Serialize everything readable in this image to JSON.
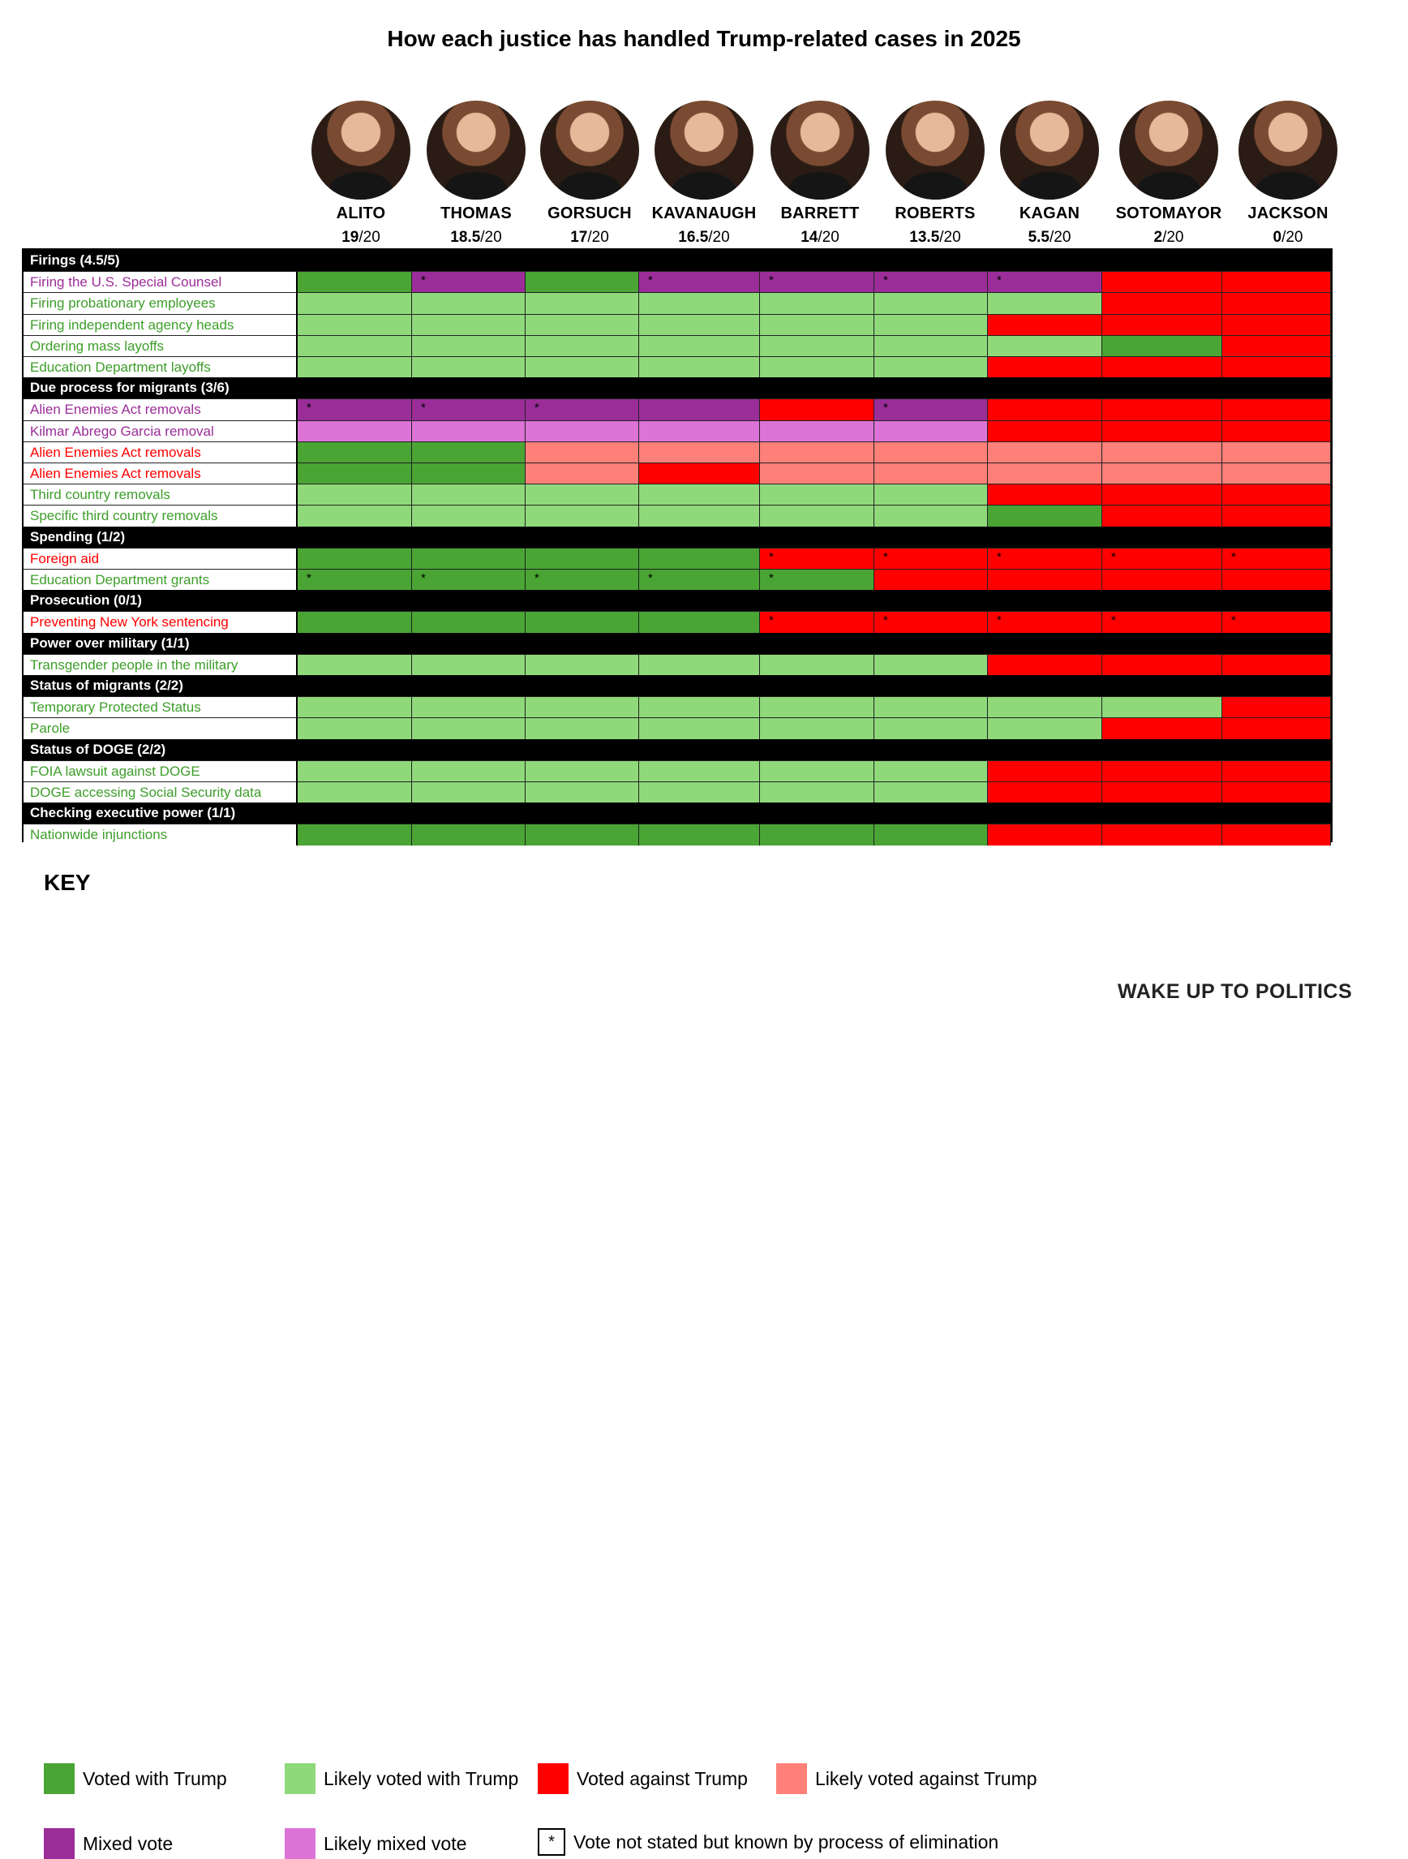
{
  "title": "How each justice has handled Trump-related cases in 2025",
  "colors": {
    "voted_with": "#4aa534",
    "likely_with": "#8fd97a",
    "voted_against": "#ff0000",
    "likely_against": "#ff8079",
    "mixed": "#9b2d99",
    "likely_mixed": "#dc74d8"
  },
  "label_colors": {
    "with": "#3d9e2a",
    "mixed": "#9b2d99",
    "against": "#ff0000"
  },
  "chart_data": {
    "type": "table",
    "title": "How each justice has handled Trump-related cases in 2025",
    "justices": [
      {
        "name": "ALITO",
        "score": "19",
        "of": "/20"
      },
      {
        "name": "THOMAS",
        "score": "18.5",
        "of": "/20"
      },
      {
        "name": "GORSUCH",
        "score": "17",
        "of": "/20"
      },
      {
        "name": "KAVANAUGH",
        "score": "16.5",
        "of": "/20"
      },
      {
        "name": "BARRETT",
        "score": "14",
        "of": "/20"
      },
      {
        "name": "ROBERTS",
        "score": "13.5",
        "of": "/20"
      },
      {
        "name": "KAGAN",
        "score": "5.5",
        "of": "/20"
      },
      {
        "name": "SOTOMAYOR",
        "score": "2",
        "of": "/20"
      },
      {
        "name": "JACKSON",
        "score": "0",
        "of": "/20"
      }
    ],
    "rows": [
      {
        "kind": "header",
        "label": "Firings (4.5/5)"
      },
      {
        "kind": "case",
        "label": "Firing the U.S. Special Counsel",
        "label_type": "mixed",
        "cells": [
          "W",
          "M*",
          "W",
          "M*",
          "M*",
          "M*",
          "M*",
          "A",
          "A"
        ]
      },
      {
        "kind": "case",
        "label": "Firing probationary employees",
        "label_type": "with",
        "cells": [
          "LW",
          "LW",
          "LW",
          "LW",
          "LW",
          "LW",
          "LW",
          "A",
          "A"
        ]
      },
      {
        "kind": "case",
        "label": "Firing independent agency heads",
        "label_type": "with",
        "cells": [
          "LW",
          "LW",
          "LW",
          "LW",
          "LW",
          "LW",
          "A",
          "A",
          "A"
        ]
      },
      {
        "kind": "case",
        "label": "Ordering mass layoffs",
        "label_type": "with",
        "cells": [
          "LW",
          "LW",
          "LW",
          "LW",
          "LW",
          "LW",
          "LW",
          "W",
          "A"
        ]
      },
      {
        "kind": "case",
        "label": "Education Department layoffs",
        "label_type": "with",
        "cells": [
          "LW",
          "LW",
          "LW",
          "LW",
          "LW",
          "LW",
          "A",
          "A",
          "A"
        ]
      },
      {
        "kind": "header",
        "label": "Due process for migrants (3/6)"
      },
      {
        "kind": "case",
        "label": "Alien Enemies Act removals",
        "label_type": "mixed",
        "cells": [
          "M*",
          "M*",
          "M*",
          "M",
          "A",
          "M*",
          "A",
          "A",
          "A"
        ]
      },
      {
        "kind": "case",
        "label": "Kilmar Abrego Garcia removal",
        "label_type": "mixed",
        "cells": [
          "LM",
          "LM",
          "LM",
          "LM",
          "LM",
          "LM",
          "A",
          "A",
          "A"
        ]
      },
      {
        "kind": "case",
        "label": "Alien Enemies Act removals",
        "label_type": "against",
        "cells": [
          "W",
          "W",
          "LA",
          "LA",
          "LA",
          "LA",
          "LA",
          "LA",
          "LA"
        ]
      },
      {
        "kind": "case",
        "label": "Alien Enemies Act removals",
        "label_type": "against",
        "cells": [
          "W",
          "W",
          "LA",
          "A",
          "LA",
          "LA",
          "LA",
          "LA",
          "LA"
        ]
      },
      {
        "kind": "case",
        "label": "Third country removals",
        "label_type": "with",
        "cells": [
          "LW",
          "LW",
          "LW",
          "LW",
          "LW",
          "LW",
          "A",
          "A",
          "A"
        ]
      },
      {
        "kind": "case",
        "label": "Specific third country removals",
        "label_type": "with",
        "cells": [
          "LW",
          "LW",
          "LW",
          "LW",
          "LW",
          "LW",
          "W",
          "A",
          "A"
        ]
      },
      {
        "kind": "header",
        "label": "Spending (1/2)"
      },
      {
        "kind": "case",
        "label": "Foreign aid",
        "label_type": "against",
        "cells": [
          "W",
          "W",
          "W",
          "W",
          "A*",
          "A*",
          "A*",
          "A*",
          "A*"
        ]
      },
      {
        "kind": "case",
        "label": "Education Department grants",
        "label_type": "with",
        "cells": [
          "W*",
          "W*",
          "W*",
          "W*",
          "W*",
          "A",
          "A",
          "A",
          "A"
        ]
      },
      {
        "kind": "header",
        "label": "Prosecution (0/1)"
      },
      {
        "kind": "case",
        "label": "Preventing New York sentencing",
        "label_type": "against",
        "cells": [
          "W",
          "W",
          "W",
          "W",
          "A*",
          "A*",
          "A*",
          "A*",
          "A*"
        ]
      },
      {
        "kind": "header",
        "label": "Power over military (1/1)"
      },
      {
        "kind": "case",
        "label": "Transgender people in the military",
        "label_type": "with",
        "cells": [
          "LW",
          "LW",
          "LW",
          "LW",
          "LW",
          "LW",
          "A",
          "A",
          "A"
        ]
      },
      {
        "kind": "header",
        "label": "Status of migrants (2/2)"
      },
      {
        "kind": "case",
        "label": "Temporary Protected Status",
        "label_type": "with",
        "cells": [
          "LW",
          "LW",
          "LW",
          "LW",
          "LW",
          "LW",
          "LW",
          "LW",
          "A"
        ]
      },
      {
        "kind": "case",
        "label": "Parole",
        "label_type": "with",
        "cells": [
          "LW",
          "LW",
          "LW",
          "LW",
          "LW",
          "LW",
          "LW",
          "A",
          "A"
        ]
      },
      {
        "kind": "header",
        "label": "Status of DOGE (2/2)"
      },
      {
        "kind": "case",
        "label": "FOIA lawsuit against DOGE",
        "label_type": "with",
        "cells": [
          "LW",
          "LW",
          "LW",
          "LW",
          "LW",
          "LW",
          "A",
          "A",
          "A"
        ]
      },
      {
        "kind": "case",
        "label": "DOGE accessing Social Security data",
        "label_type": "with",
        "cells": [
          "LW",
          "LW",
          "LW",
          "LW",
          "LW",
          "LW",
          "A",
          "A",
          "A"
        ]
      },
      {
        "kind": "header",
        "label": "Checking executive power (1/1)"
      },
      {
        "kind": "case",
        "label": "Nationwide injunctions",
        "label_type": "with",
        "cells": [
          "W",
          "W",
          "W",
          "W",
          "W",
          "W",
          "A",
          "A",
          "A"
        ]
      }
    ]
  },
  "key": {
    "title": "KEY",
    "items": [
      {
        "code": "W",
        "label": "Voted with Trump"
      },
      {
        "code": "LW",
        "label": "Likely voted with Trump"
      },
      {
        "code": "A",
        "label": "Voted against Trump"
      },
      {
        "code": "LA",
        "label": "Likely voted against Trump"
      },
      {
        "code": "M",
        "label": "Mixed vote"
      },
      {
        "code": "LM",
        "label": "Likely mixed vote"
      },
      {
        "code": "*",
        "label": "Vote not stated but known by process of elimination"
      }
    ]
  },
  "brand": "WAKE UP TO POLITICS"
}
